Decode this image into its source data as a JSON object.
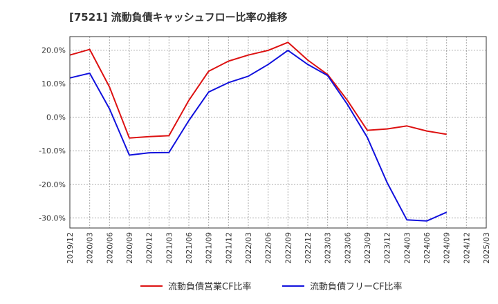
{
  "chart_data": {
    "type": "line",
    "title": "[7521]  流動負債キャッシュフロー比率の推移",
    "x": [
      "2019/12",
      "2020/03",
      "2020/06",
      "2020/09",
      "2020/12",
      "2021/03",
      "2021/06",
      "2021/09",
      "2021/12",
      "2022/03",
      "2022/06",
      "2022/09",
      "2022/12",
      "2023/03",
      "2023/06",
      "2023/09",
      "2023/12",
      "2024/03",
      "2024/06",
      "2024/09",
      "2024/12",
      "2025/03"
    ],
    "series": [
      {
        "name": "流動負債営業CF比率",
        "color": "#dd1111",
        "values": [
          18.5,
          20.2,
          9.0,
          -6.2,
          -5.8,
          -5.5,
          5.0,
          13.7,
          16.7,
          18.5,
          19.9,
          22.3,
          17.0,
          12.7,
          5.0,
          -3.9,
          -3.5,
          -2.6,
          -4.1,
          -5.1,
          null,
          null
        ]
      },
      {
        "name": "流動負債フリーCF比率",
        "color": "#1111dd",
        "values": [
          11.7,
          13.1,
          2.5,
          -11.3,
          -10.6,
          -10.5,
          -1.0,
          7.5,
          10.3,
          12.2,
          15.7,
          19.9,
          15.7,
          12.4,
          3.8,
          -6.0,
          -19.5,
          -30.6,
          -30.9,
          -28.3,
          null,
          null
        ]
      }
    ],
    "yticks": [
      20,
      10,
      0,
      -10,
      -20,
      -30
    ],
    "ytick_labels": [
      "20.0%",
      "10.0%",
      "0.0%",
      "-10.0%",
      "-20.0%",
      "-30.0%"
    ],
    "ylim": [
      -33,
      24
    ],
    "ylabel": "",
    "xlabel": "",
    "grid": true,
    "legend_position": "bottom"
  }
}
